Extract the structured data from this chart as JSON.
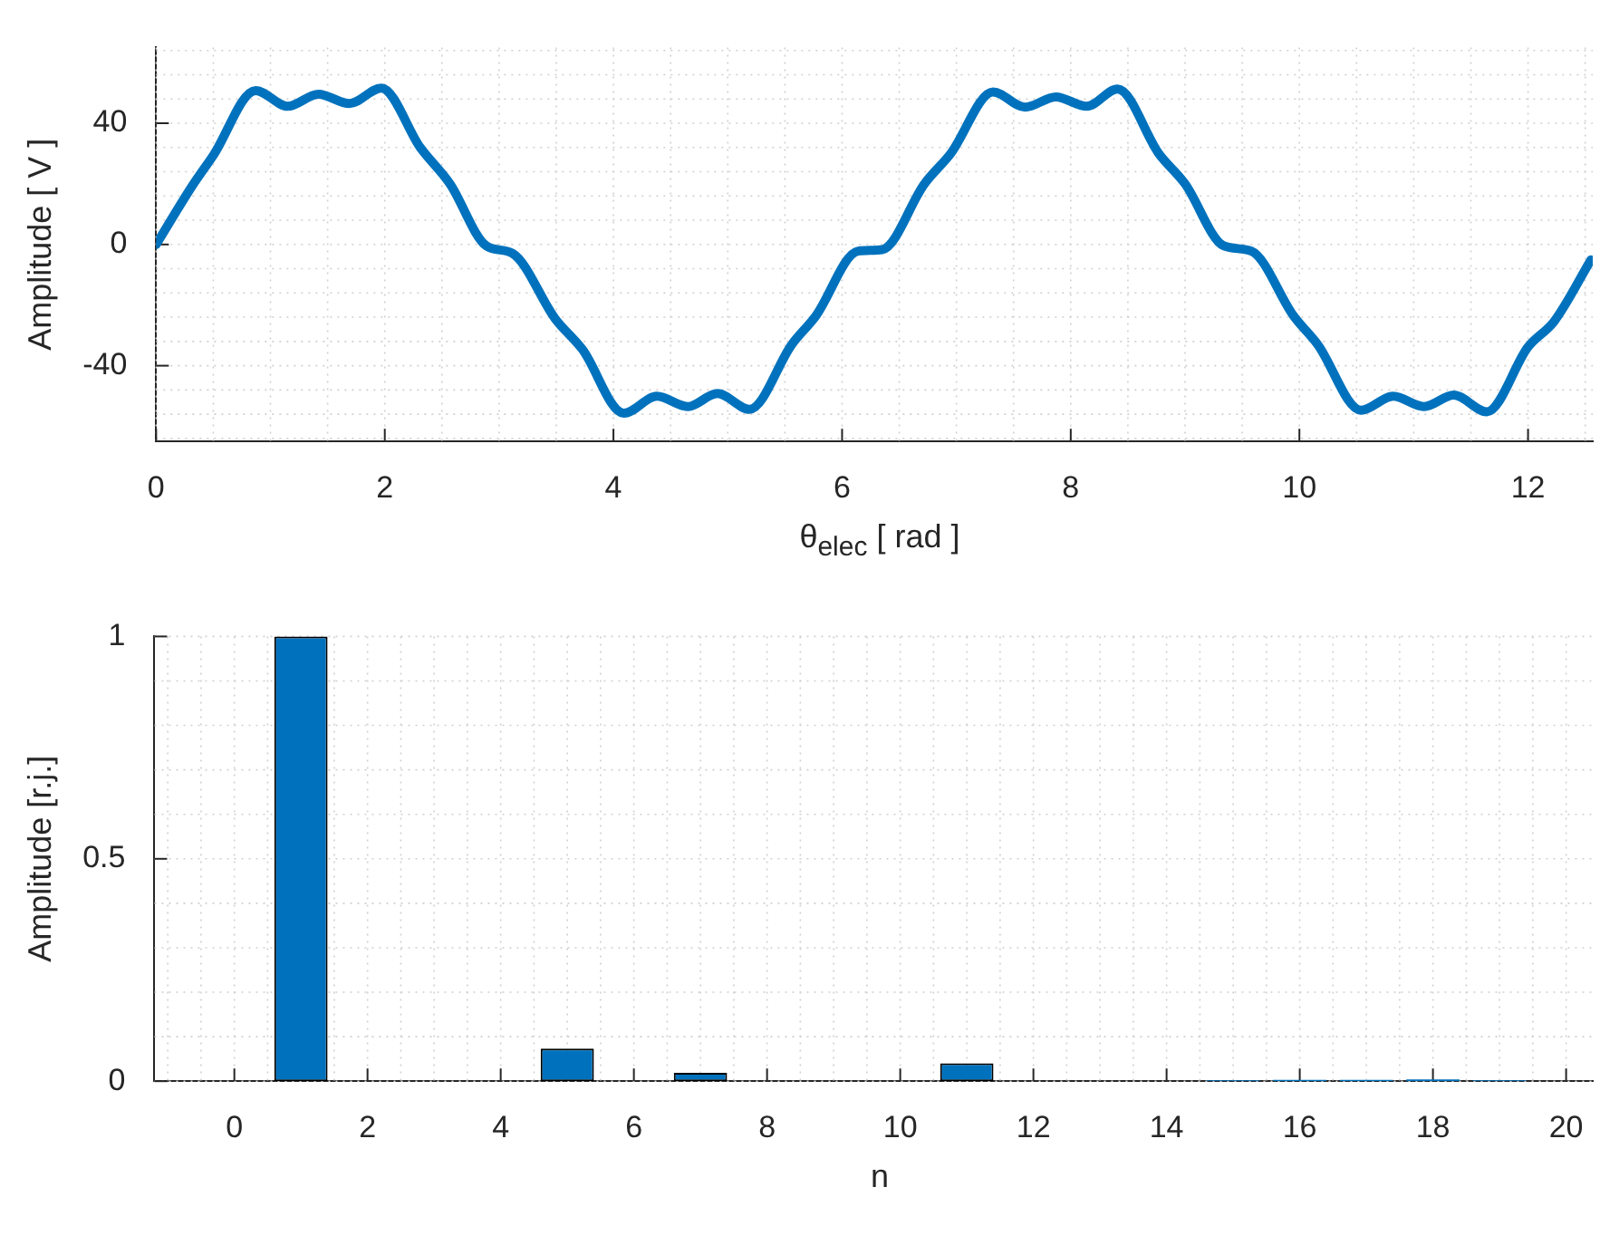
{
  "chart_data": [
    {
      "type": "line",
      "xlabel": "θ$_{elec}$ [ rad ]",
      "ylabel": "Amplitude [ V ]",
      "xlim": [
        0,
        12.566
      ],
      "ylim": [
        -65,
        65
      ],
      "xticks": [
        0,
        2,
        4,
        6,
        8,
        10,
        12
      ],
      "yticks": [
        -40,
        0,
        40
      ],
      "grid": true,
      "legend": false,
      "marker": "none",
      "line_style": "solid",
      "x": [
        0,
        0.31,
        0.5,
        0.87,
        1.15,
        1.42,
        1.69,
        1.97,
        2.31,
        2.57,
        2.89,
        3.12,
        3.49,
        3.73,
        4.09,
        4.38,
        4.65,
        4.91,
        5.19,
        5.56,
        5.77,
        6.14,
        6.35,
        6.72,
        6.95,
        7.32,
        7.6,
        7.87,
        8.14,
        8.41,
        8.77,
        9.0,
        9.34,
        9.58,
        9.95,
        10.16,
        10.54,
        10.82,
        11.09,
        11.35,
        11.64,
        12.0,
        12.23,
        12.55
      ],
      "series": [
        {
          "color": "#0072bd",
          "values": [
            0,
            19,
            29.4,
            50.8,
            45.6,
            49.6,
            46.5,
            51.6,
            32,
            20,
            -0.5,
            -3,
            -24.5,
            -34.7,
            -55.7,
            -50.1,
            -53.5,
            -49.2,
            -54.4,
            -33,
            -23.6,
            -2.2,
            -1.7,
            20,
            30,
            50.3,
            45.3,
            48.7,
            45.6,
            51.3,
            30,
            20,
            -0.5,
            -2.2,
            -23.6,
            -33,
            -54.7,
            -50.1,
            -53.5,
            -49.7,
            -55.2,
            -33.8,
            -25.3,
            -5.1
          ]
        }
      ]
    },
    {
      "type": "bar",
      "xlabel": "n",
      "ylabel": "Amplitude [r.j.]",
      "xlim": [
        -1.2,
        20.4
      ],
      "ylim": [
        0,
        1
      ],
      "xticks": [
        0,
        2,
        4,
        6,
        8,
        10,
        12,
        14,
        16,
        18,
        20
      ],
      "yticks": [
        0,
        0.5,
        1
      ],
      "grid": true,
      "legend": false,
      "x": [
        0,
        1,
        2,
        3,
        4,
        5,
        6,
        7,
        8,
        9,
        10,
        11,
        12,
        13,
        14,
        15,
        16,
        17,
        18,
        19
      ],
      "series": [
        {
          "color": "#0072bd",
          "values": [
            0,
            1,
            0,
            0,
            0,
            0.073,
            0,
            0.019,
            0,
            0,
            0,
            0.04,
            0,
            0,
            0,
            0.002,
            0.003,
            0.003,
            0.004,
            0.002
          ]
        }
      ]
    }
  ]
}
